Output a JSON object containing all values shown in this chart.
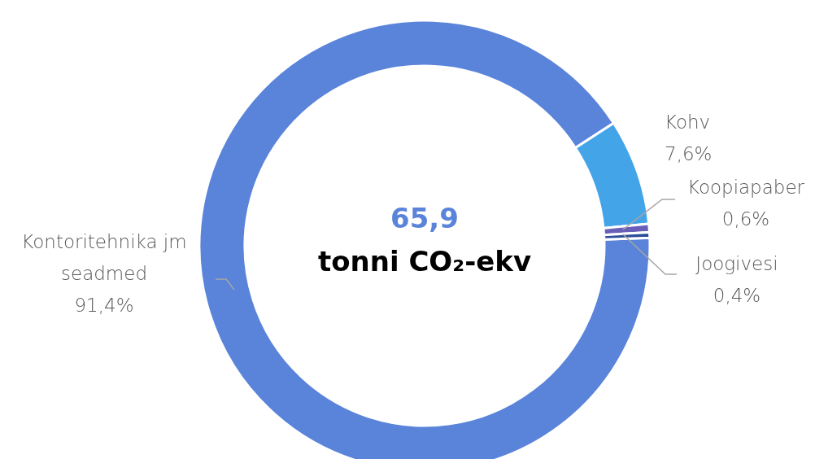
{
  "chart_data": {
    "type": "donut",
    "categories": [
      "Kontoritehnika jm seadmed",
      "Kohv",
      "Koopiapaber",
      "Joogivesi"
    ],
    "values": [
      91.4,
      7.6,
      0.6,
      0.4
    ],
    "value_labels": [
      "91,4%",
      "7,6%",
      "0,6%",
      "0,4%"
    ],
    "colors": [
      "#5a83da",
      "#44a4e8",
      "#6a5fb8",
      "#2c4c9c"
    ],
    "annotations": [
      "65,9",
      "tonni CO₂-ekv"
    ]
  }
}
